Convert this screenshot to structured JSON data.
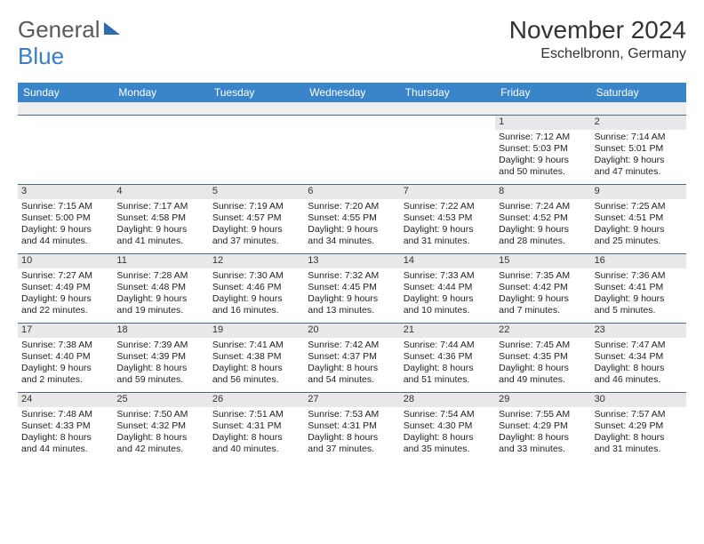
{
  "logo": {
    "general": "General",
    "blue": "Blue"
  },
  "title": "November 2024",
  "location": "Eschelbronn, Germany",
  "day_names": [
    "Sunday",
    "Monday",
    "Tuesday",
    "Wednesday",
    "Thursday",
    "Friday",
    "Saturday"
  ],
  "colors": {
    "header_bar": "#3a85c9",
    "header_text": "#ffffff",
    "daynum_bg": "#e8e8e8",
    "cell_border": "#4a6a8a",
    "body_text": "#222222",
    "title_text": "#333333",
    "logo_general": "#5a5a5a",
    "logo_blue": "#3a7fc4"
  },
  "weeks": [
    [
      null,
      null,
      null,
      null,
      null,
      {
        "n": "1",
        "sunrise": "7:12 AM",
        "sunset": "5:03 PM",
        "dl1": "Daylight: 9 hours",
        "dl2": "and 50 minutes."
      },
      {
        "n": "2",
        "sunrise": "7:14 AM",
        "sunset": "5:01 PM",
        "dl1": "Daylight: 9 hours",
        "dl2": "and 47 minutes."
      }
    ],
    [
      {
        "n": "3",
        "sunrise": "7:15 AM",
        "sunset": "5:00 PM",
        "dl1": "Daylight: 9 hours",
        "dl2": "and 44 minutes."
      },
      {
        "n": "4",
        "sunrise": "7:17 AM",
        "sunset": "4:58 PM",
        "dl1": "Daylight: 9 hours",
        "dl2": "and 41 minutes."
      },
      {
        "n": "5",
        "sunrise": "7:19 AM",
        "sunset": "4:57 PM",
        "dl1": "Daylight: 9 hours",
        "dl2": "and 37 minutes."
      },
      {
        "n": "6",
        "sunrise": "7:20 AM",
        "sunset": "4:55 PM",
        "dl1": "Daylight: 9 hours",
        "dl2": "and 34 minutes."
      },
      {
        "n": "7",
        "sunrise": "7:22 AM",
        "sunset": "4:53 PM",
        "dl1": "Daylight: 9 hours",
        "dl2": "and 31 minutes."
      },
      {
        "n": "8",
        "sunrise": "7:24 AM",
        "sunset": "4:52 PM",
        "dl1": "Daylight: 9 hours",
        "dl2": "and 28 minutes."
      },
      {
        "n": "9",
        "sunrise": "7:25 AM",
        "sunset": "4:51 PM",
        "dl1": "Daylight: 9 hours",
        "dl2": "and 25 minutes."
      }
    ],
    [
      {
        "n": "10",
        "sunrise": "7:27 AM",
        "sunset": "4:49 PM",
        "dl1": "Daylight: 9 hours",
        "dl2": "and 22 minutes."
      },
      {
        "n": "11",
        "sunrise": "7:28 AM",
        "sunset": "4:48 PM",
        "dl1": "Daylight: 9 hours",
        "dl2": "and 19 minutes."
      },
      {
        "n": "12",
        "sunrise": "7:30 AM",
        "sunset": "4:46 PM",
        "dl1": "Daylight: 9 hours",
        "dl2": "and 16 minutes."
      },
      {
        "n": "13",
        "sunrise": "7:32 AM",
        "sunset": "4:45 PM",
        "dl1": "Daylight: 9 hours",
        "dl2": "and 13 minutes."
      },
      {
        "n": "14",
        "sunrise": "7:33 AM",
        "sunset": "4:44 PM",
        "dl1": "Daylight: 9 hours",
        "dl2": "and 10 minutes."
      },
      {
        "n": "15",
        "sunrise": "7:35 AM",
        "sunset": "4:42 PM",
        "dl1": "Daylight: 9 hours",
        "dl2": "and 7 minutes."
      },
      {
        "n": "16",
        "sunrise": "7:36 AM",
        "sunset": "4:41 PM",
        "dl1": "Daylight: 9 hours",
        "dl2": "and 5 minutes."
      }
    ],
    [
      {
        "n": "17",
        "sunrise": "7:38 AM",
        "sunset": "4:40 PM",
        "dl1": "Daylight: 9 hours",
        "dl2": "and 2 minutes."
      },
      {
        "n": "18",
        "sunrise": "7:39 AM",
        "sunset": "4:39 PM",
        "dl1": "Daylight: 8 hours",
        "dl2": "and 59 minutes."
      },
      {
        "n": "19",
        "sunrise": "7:41 AM",
        "sunset": "4:38 PM",
        "dl1": "Daylight: 8 hours",
        "dl2": "and 56 minutes."
      },
      {
        "n": "20",
        "sunrise": "7:42 AM",
        "sunset": "4:37 PM",
        "dl1": "Daylight: 8 hours",
        "dl2": "and 54 minutes."
      },
      {
        "n": "21",
        "sunrise": "7:44 AM",
        "sunset": "4:36 PM",
        "dl1": "Daylight: 8 hours",
        "dl2": "and 51 minutes."
      },
      {
        "n": "22",
        "sunrise": "7:45 AM",
        "sunset": "4:35 PM",
        "dl1": "Daylight: 8 hours",
        "dl2": "and 49 minutes."
      },
      {
        "n": "23",
        "sunrise": "7:47 AM",
        "sunset": "4:34 PM",
        "dl1": "Daylight: 8 hours",
        "dl2": "and 46 minutes."
      }
    ],
    [
      {
        "n": "24",
        "sunrise": "7:48 AM",
        "sunset": "4:33 PM",
        "dl1": "Daylight: 8 hours",
        "dl2": "and 44 minutes."
      },
      {
        "n": "25",
        "sunrise": "7:50 AM",
        "sunset": "4:32 PM",
        "dl1": "Daylight: 8 hours",
        "dl2": "and 42 minutes."
      },
      {
        "n": "26",
        "sunrise": "7:51 AM",
        "sunset": "4:31 PM",
        "dl1": "Daylight: 8 hours",
        "dl2": "and 40 minutes."
      },
      {
        "n": "27",
        "sunrise": "7:53 AM",
        "sunset": "4:31 PM",
        "dl1": "Daylight: 8 hours",
        "dl2": "and 37 minutes."
      },
      {
        "n": "28",
        "sunrise": "7:54 AM",
        "sunset": "4:30 PM",
        "dl1": "Daylight: 8 hours",
        "dl2": "and 35 minutes."
      },
      {
        "n": "29",
        "sunrise": "7:55 AM",
        "sunset": "4:29 PM",
        "dl1": "Daylight: 8 hours",
        "dl2": "and 33 minutes."
      },
      {
        "n": "30",
        "sunrise": "7:57 AM",
        "sunset": "4:29 PM",
        "dl1": "Daylight: 8 hours",
        "dl2": "and 31 minutes."
      }
    ]
  ],
  "labels": {
    "sunrise_prefix": "Sunrise: ",
    "sunset_prefix": "Sunset: "
  }
}
